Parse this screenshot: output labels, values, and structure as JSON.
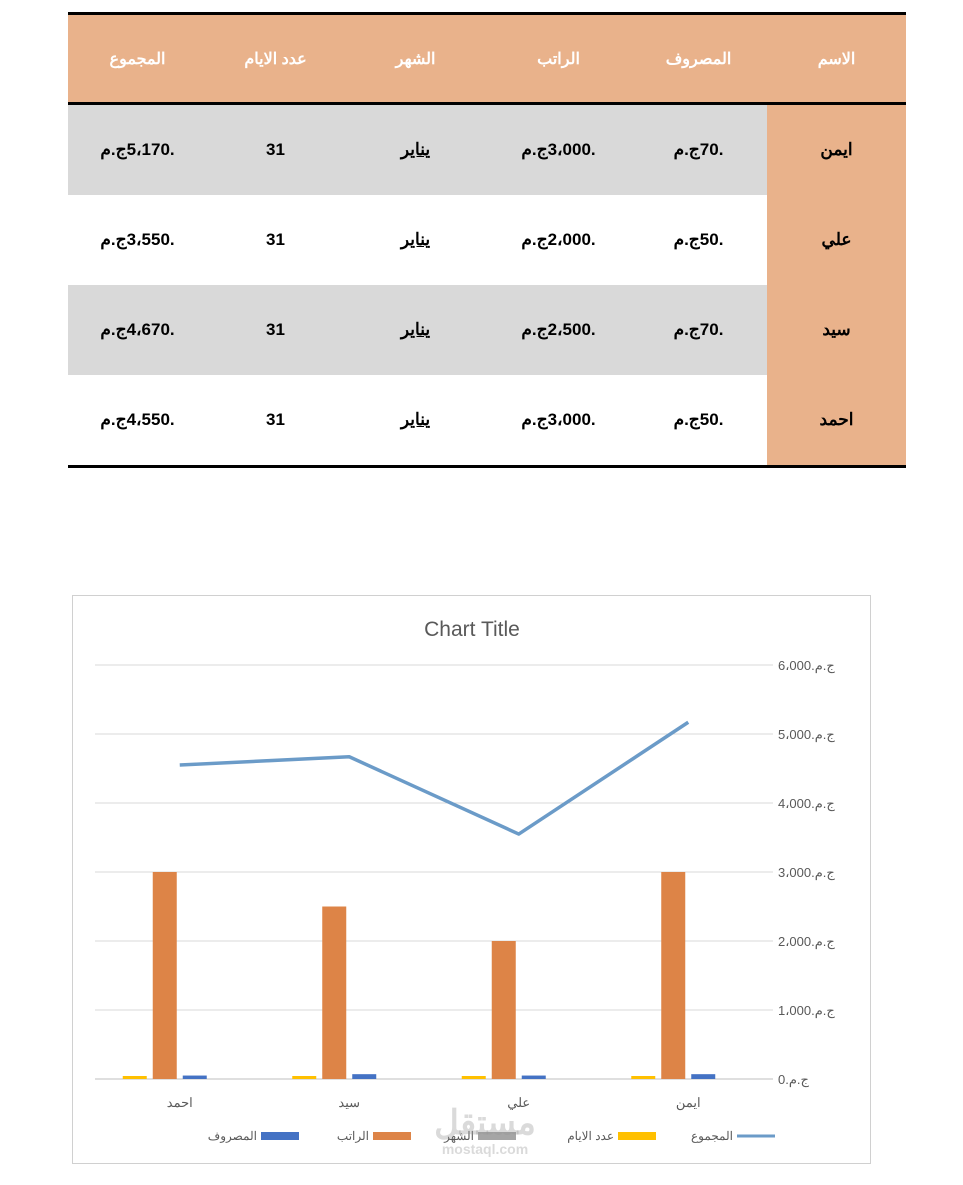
{
  "table": {
    "headers": {
      "name": "الاسم",
      "expense": "المصروف",
      "salary": "الراتب",
      "month": "الشهر",
      "days": "عدد الايام",
      "total": "المجموع"
    },
    "rows": [
      {
        "name": "ايمن",
        "expense": ".70ج.م",
        "salary": ".3،000ج.م",
        "month": "يناير",
        "days": "31",
        "total": ".5،170ج.م"
      },
      {
        "name": "علي",
        "expense": ".50ج.م",
        "salary": ".2،000ج.م",
        "month": "يناير",
        "days": "31",
        "total": ".3،550ج.م"
      },
      {
        "name": "سيد",
        "expense": ".70ج.م",
        "salary": ".2،500ج.م",
        "month": "يناير",
        "days": "31",
        "total": ".4،670ج.م"
      },
      {
        "name": "احمد",
        "expense": ".50ج.م",
        "salary": ".3،000ج.م",
        "month": "يناير",
        "days": "31",
        "total": ".4،550ج.م"
      }
    ]
  },
  "chart_data": {
    "type": "bar",
    "title": "Chart Title",
    "categories": [
      "احمد",
      "سيد",
      "علي",
      "ايمن"
    ],
    "ylim": [
      0,
      6000
    ],
    "y_ticks": [
      0,
      1000,
      2000,
      3000,
      4000,
      5000,
      6000
    ],
    "y_tick_labels": [
      "ج.م.0",
      "ج.م.1،000",
      "ج.م.2،000",
      "ج.م.3،000",
      "ج.م.4،000",
      "ج.م.5،000",
      "ج.م.6،000"
    ],
    "y_axis_position": "right",
    "grid": true,
    "legend_position": "bottom",
    "series": [
      {
        "name": "عدد الايام",
        "type": "bar",
        "color": "#ffc000",
        "values": [
          31,
          31,
          31,
          31
        ]
      },
      {
        "name": "الراتب",
        "type": "bar",
        "color": "#dd8447",
        "values": [
          3000,
          2500,
          2000,
          3000
        ]
      },
      {
        "name": "المصروف",
        "type": "bar",
        "color": "#4472c4",
        "values": [
          50,
          70,
          50,
          70
        ]
      },
      {
        "name": "الشهر",
        "type": "bar",
        "color": "#a5a5a5",
        "values": [
          0,
          0,
          0,
          0
        ]
      },
      {
        "name": "المجموع",
        "type": "line",
        "color": "#6b9bc8",
        "values": [
          4550,
          4670,
          3550,
          5170
        ]
      }
    ],
    "legend_order": [
      "المجموع",
      "عدد الايام",
      "الشهر",
      "الراتب",
      "المصروف"
    ]
  },
  "watermark": {
    "arabic": "مستقل",
    "latin": "mostaql.com"
  }
}
